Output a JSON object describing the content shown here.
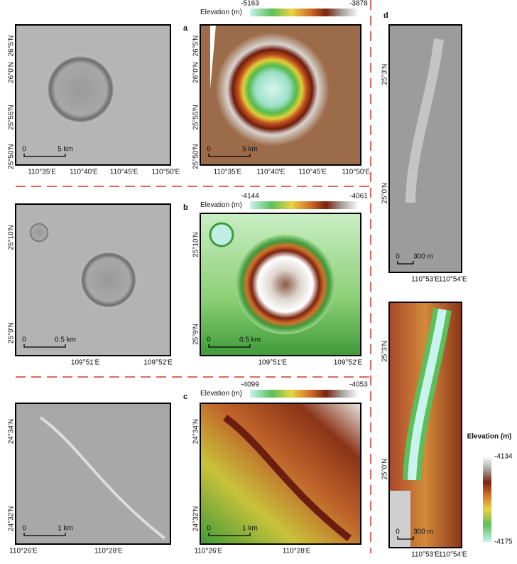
{
  "panels": [
    {
      "label": "a",
      "colorbar": {
        "title": "Elevation (m)",
        "min": -5163,
        "max": -3878
      },
      "y_ticks": [
        "26°5'N",
        "26°0'N",
        "25°55'N",
        "25°50'N"
      ],
      "x_ticks": [
        "110°35'E",
        "110°40'E",
        "110°45'E",
        "110°50'E"
      ],
      "scale": {
        "start": "0",
        "end": "5 km"
      }
    },
    {
      "label": "b",
      "colorbar": {
        "title": "Elevation (m)",
        "min": -4144,
        "max": -4061
      },
      "y_ticks": [
        "25°10'N",
        "25°9'N"
      ],
      "x_ticks": [
        "109°51'E",
        "109°52'E"
      ],
      "scale": {
        "start": "0",
        "end": "0.5 km"
      }
    },
    {
      "label": "c",
      "colorbar": {
        "title": "Elevation (m)",
        "min": -4099,
        "max": -4053
      },
      "y_ticks": [
        "24°34'N",
        "24°32'N"
      ],
      "x_ticks": [
        "110°26'E",
        "110°28'E"
      ],
      "scale": {
        "start": "0",
        "end": "1 km"
      }
    },
    {
      "label": "d",
      "colorbar": {
        "title": "Elevation (m)",
        "min": -4175,
        "max": -4134
      },
      "y_ticks": [
        "25°3'N",
        "25°0'N"
      ],
      "x_ticks": [
        "110°53'E",
        "110°54'E"
      ],
      "scale": {
        "start": "0",
        "end": "300 m"
      }
    }
  ]
}
